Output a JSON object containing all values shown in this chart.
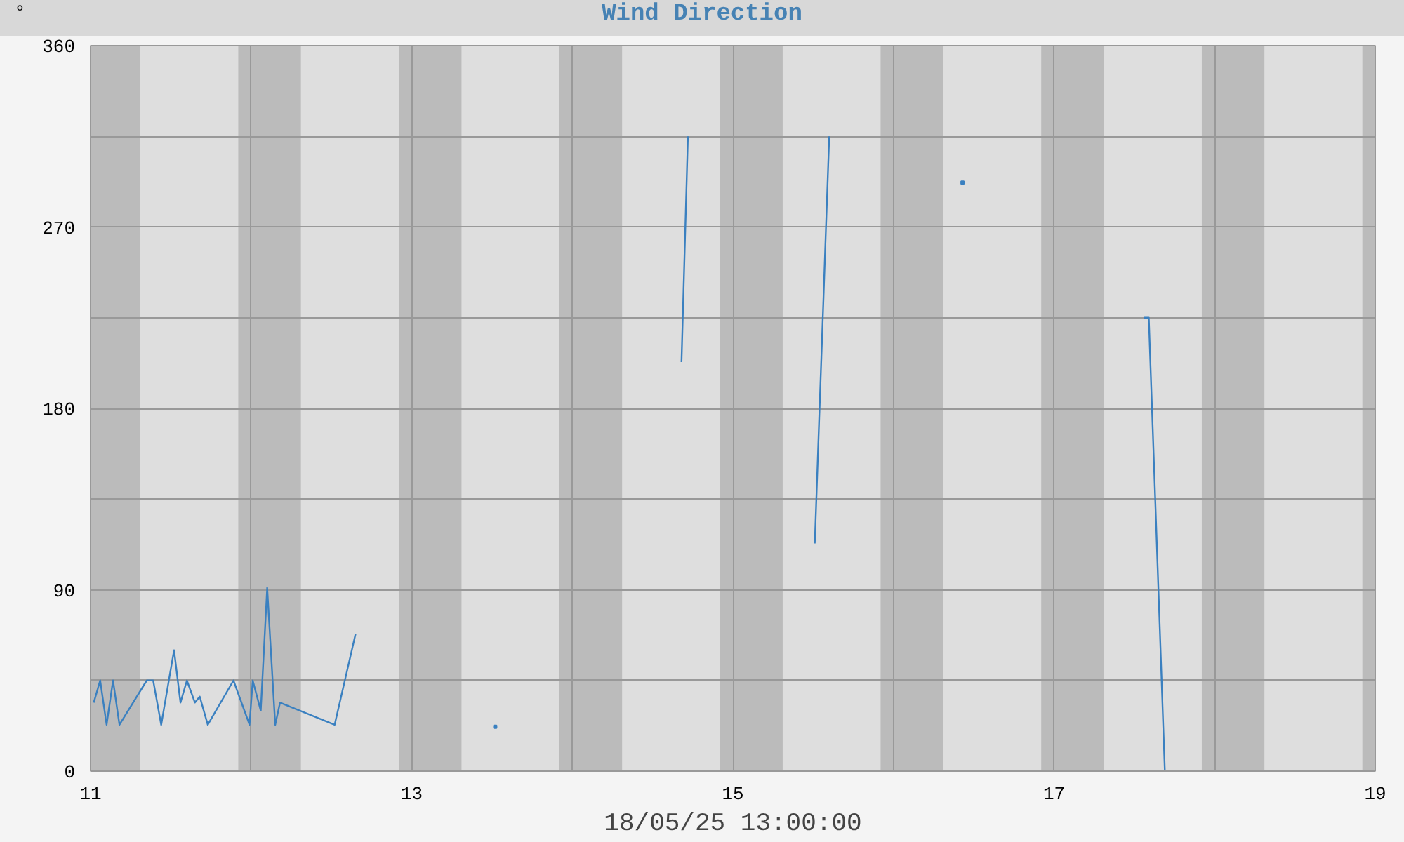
{
  "chart_data": {
    "type": "line",
    "title": "Wind Direction",
    "ylabel": "°",
    "xlabel": "18/05/25 13:00:00",
    "x": [
      11.02,
      11.06,
      11.1,
      11.14,
      11.18,
      11.35,
      11.39,
      11.44,
      11.52,
      11.56,
      11.6,
      11.65,
      11.68,
      11.73,
      11.89,
      11.99,
      12.01,
      12.06,
      12.1,
      12.15,
      12.18,
      12.52,
      12.65,
      13.0,
      13.52,
      14.0,
      14.68,
      14.72,
      15.0,
      15.51,
      15.6,
      16.0,
      16.43,
      17.0,
      17.56,
      17.59,
      17.69
    ],
    "series": [
      {
        "color": "#3a80c0",
        "values": [
          34,
          45,
          23,
          45,
          23,
          45,
          45,
          23,
          60,
          34,
          45,
          34,
          37,
          23,
          45,
          23,
          45,
          30,
          91,
          23,
          34,
          23,
          68,
          null,
          22,
          null,
          203,
          315,
          null,
          113,
          315,
          null,
          292,
          null,
          225,
          225,
          0
        ]
      }
    ],
    "xlim": [
      11,
      19
    ],
    "xticks": [
      11,
      {
        "value": 12,
        "label": null
      },
      13,
      {
        "value": 14,
        "label": null
      },
      15,
      {
        "value": 16,
        "label": null
      },
      17,
      {
        "value": 18,
        "label": null
      },
      19
    ],
    "ylim": [
      0,
      360
    ],
    "yticks": [
      0,
      {
        "value": 45,
        "label": null
      },
      90,
      {
        "value": 135,
        "label": null
      },
      180,
      {
        "value": 225,
        "label": null
      },
      270,
      {
        "value": 315,
        "label": null
      },
      360
    ],
    "grid": true,
    "marker": "none",
    "line_style": "solid",
    "bands": [
      {
        "axis": "x",
        "from": 11.0,
        "to": 11.31,
        "color": "#bbbbbb"
      },
      {
        "axis": "x",
        "from": 11.92,
        "to": 12.31,
        "color": "#bbbbbb"
      },
      {
        "axis": "x",
        "from": 12.92,
        "to": 13.31,
        "color": "#bbbbbb"
      },
      {
        "axis": "x",
        "from": 13.92,
        "to": 14.31,
        "color": "#bbbbbb"
      },
      {
        "axis": "x",
        "from": 14.92,
        "to": 15.31,
        "color": "#bbbbbb"
      },
      {
        "axis": "x",
        "from": 15.92,
        "to": 16.31,
        "color": "#bbbbbb"
      },
      {
        "axis": "x",
        "from": 16.92,
        "to": 17.31,
        "color": "#bbbbbb"
      },
      {
        "axis": "x",
        "from": 17.92,
        "to": 18.31,
        "color": "#bbbbbb"
      },
      {
        "axis": "x",
        "from": 18.92,
        "to": 19.0,
        "color": "#bbbbbb"
      }
    ]
  }
}
